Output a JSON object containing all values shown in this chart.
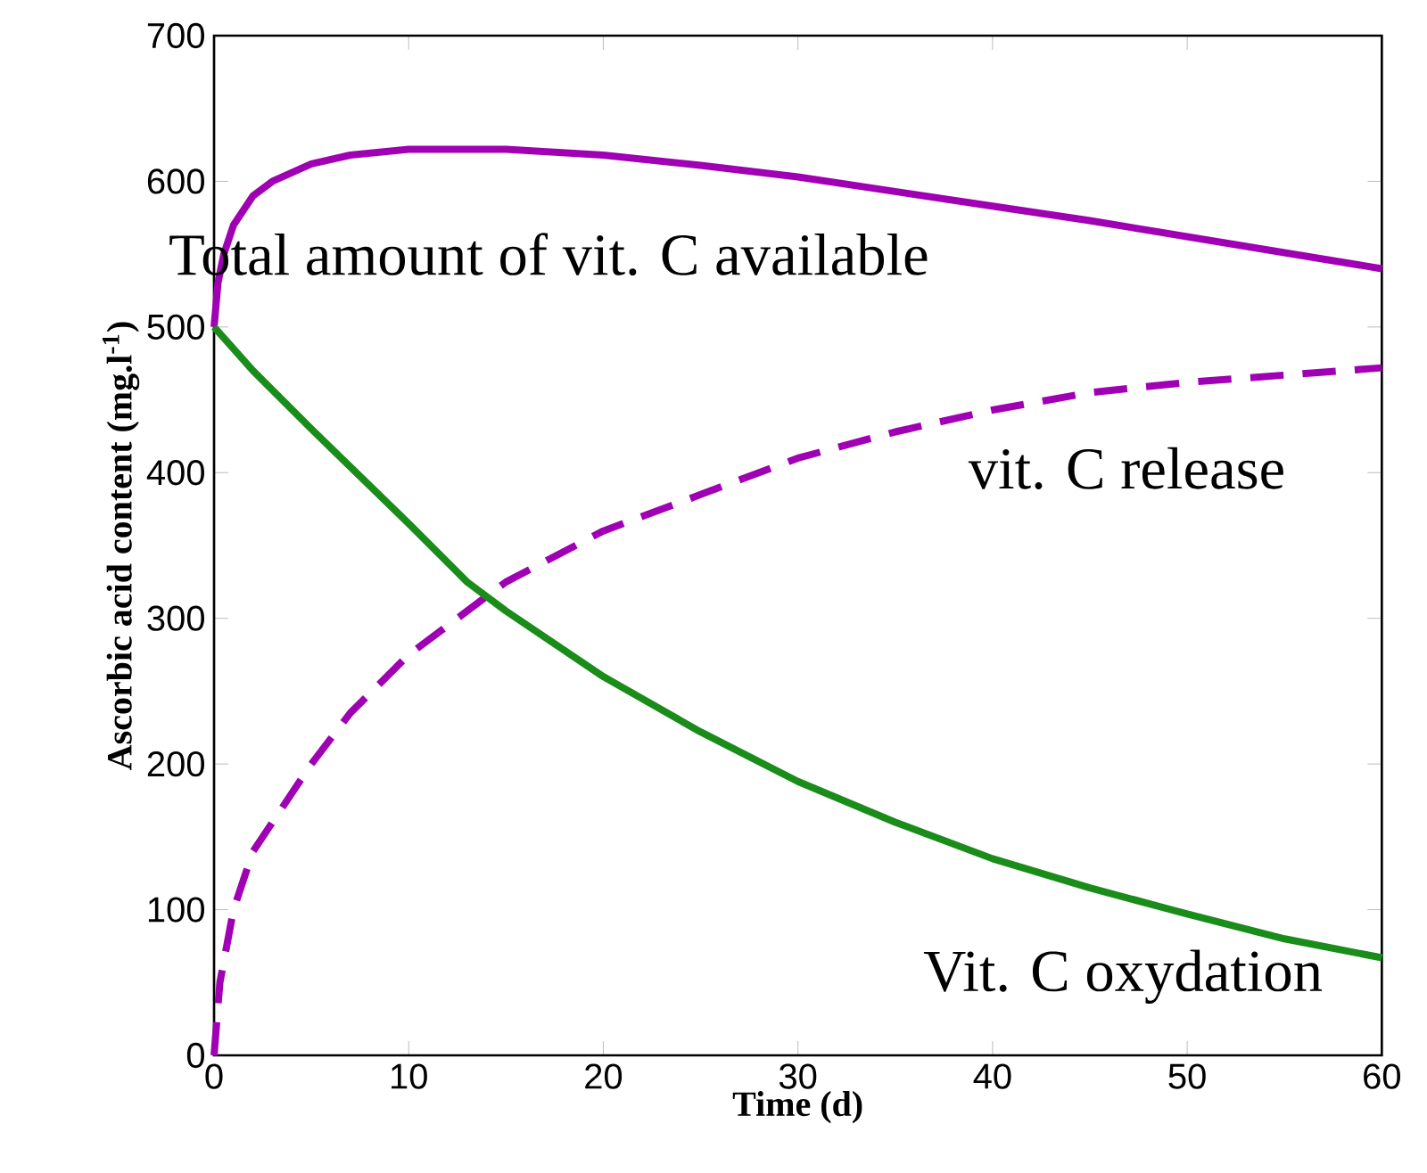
{
  "chart_data": {
    "type": "line",
    "xlabel": "Time (d)",
    "ylabel": "Ascorbic acid content (mg.l$^{-1}$)",
    "xlim": [
      0,
      60
    ],
    "ylim": [
      0,
      700
    ],
    "xticks": [
      0,
      10,
      20,
      30,
      40,
      50,
      60
    ],
    "yticks": [
      0,
      100,
      200,
      300,
      400,
      500,
      600,
      700
    ],
    "marker": "none",
    "series": [
      {
        "name": "Total amount of vit. C available",
        "color": "#a000b4",
        "line_style": "solid",
        "x": [
          0,
          0.2,
          0.5,
          1,
          2,
          3,
          5,
          7,
          10,
          15,
          20,
          25,
          30,
          35,
          40,
          45,
          50,
          55,
          60
        ],
        "values": [
          500,
          530,
          550,
          570,
          590,
          600,
          612,
          618,
          622,
          622,
          618,
          611,
          603,
          593,
          583,
          573,
          562,
          551,
          540
        ]
      },
      {
        "name": "vit. C release",
        "color": "#a000b4",
        "line_style": "dashed",
        "x": [
          0,
          0.3,
          1,
          2,
          3,
          5,
          7,
          10,
          13,
          15,
          20,
          25,
          30,
          35,
          40,
          45,
          50,
          55,
          60
        ],
        "values": [
          0,
          50,
          100,
          140,
          160,
          200,
          235,
          275,
          305,
          325,
          360,
          385,
          410,
          428,
          443,
          455,
          462,
          467,
          472
        ]
      },
      {
        "name": "Vit. C oxydation",
        "color": "#1a8c1a",
        "line_style": "solid",
        "x": [
          0,
          2,
          5,
          10,
          13,
          15,
          20,
          25,
          30,
          35,
          40,
          45,
          50,
          55,
          60
        ],
        "values": [
          500,
          470,
          430,
          365,
          325,
          305,
          260,
          222,
          188,
          160,
          135,
          115,
          97,
          80,
          67
        ]
      }
    ]
  }
}
